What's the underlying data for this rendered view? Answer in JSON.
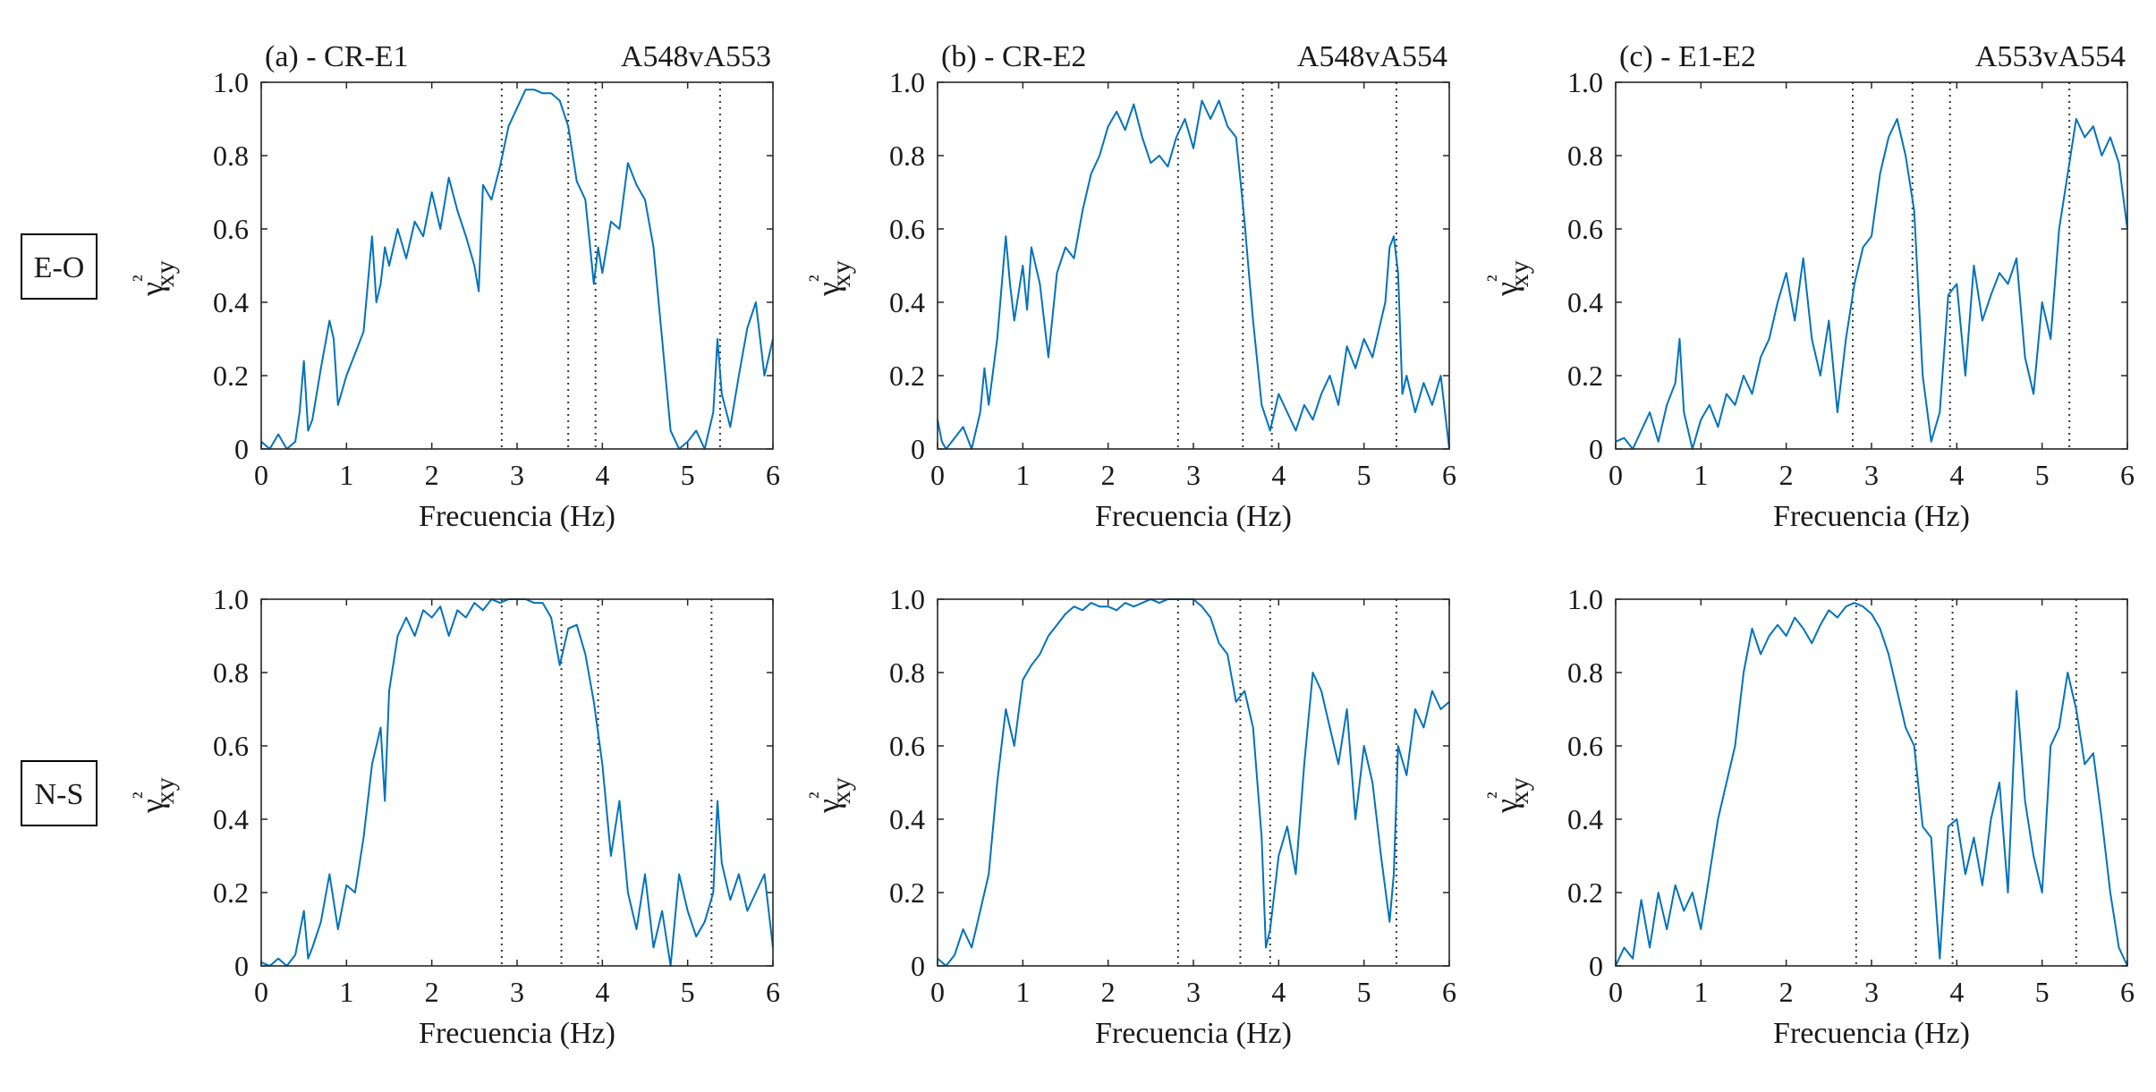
{
  "figure": {
    "row_labels": [
      "E-O",
      "N-S"
    ],
    "line_color": "#0072BD",
    "axis_color": "#262626",
    "marker_color": "#333333"
  },
  "chart_data": [
    {
      "type": "line",
      "row": "E-O",
      "title_left": "(a) - CR-E1",
      "title_right": "A548vA553",
      "xlabel": "Frecuencia (Hz)",
      "ylabel": "γ²xy",
      "xlim": [
        0,
        6
      ],
      "ylim": [
        0,
        1
      ],
      "xticks": [
        0,
        1,
        2,
        3,
        4,
        5,
        6
      ],
      "yticks": [
        0,
        0.2,
        0.4,
        0.6,
        0.8,
        1.0
      ],
      "ytick_labels": [
        "0",
        "0.2",
        "0.4",
        "0.6",
        "0.8",
        "1.0"
      ],
      "vlines": [
        2.82,
        3.6,
        3.92,
        5.38
      ],
      "x": [
        0,
        0.1,
        0.2,
        0.3,
        0.4,
        0.45,
        0.5,
        0.55,
        0.6,
        0.7,
        0.8,
        0.85,
        0.9,
        1.0,
        1.1,
        1.2,
        1.3,
        1.35,
        1.4,
        1.45,
        1.5,
        1.6,
        1.7,
        1.8,
        1.9,
        2.0,
        2.1,
        2.2,
        2.3,
        2.4,
        2.5,
        2.55,
        2.6,
        2.7,
        2.8,
        2.9,
        3.0,
        3.1,
        3.2,
        3.3,
        3.4,
        3.5,
        3.6,
        3.7,
        3.8,
        3.9,
        3.95,
        4.0,
        4.1,
        4.2,
        4.3,
        4.4,
        4.5,
        4.6,
        4.7,
        4.8,
        4.9,
        5.0,
        5.1,
        5.2,
        5.3,
        5.35,
        5.4,
        5.5,
        5.6,
        5.7,
        5.8,
        5.9,
        6.0
      ],
      "y": [
        0.02,
        0.0,
        0.04,
        0.0,
        0.02,
        0.1,
        0.24,
        0.05,
        0.08,
        0.22,
        0.35,
        0.3,
        0.12,
        0.2,
        0.26,
        0.32,
        0.58,
        0.4,
        0.45,
        0.55,
        0.5,
        0.6,
        0.52,
        0.62,
        0.58,
        0.7,
        0.6,
        0.74,
        0.65,
        0.58,
        0.5,
        0.43,
        0.72,
        0.68,
        0.77,
        0.88,
        0.93,
        0.98,
        0.98,
        0.97,
        0.97,
        0.95,
        0.88,
        0.73,
        0.68,
        0.45,
        0.55,
        0.48,
        0.62,
        0.6,
        0.78,
        0.72,
        0.68,
        0.55,
        0.3,
        0.05,
        0.0,
        0.02,
        0.05,
        0.0,
        0.1,
        0.3,
        0.15,
        0.06,
        0.2,
        0.33,
        0.4,
        0.2,
        0.3
      ]
    },
    {
      "type": "line",
      "row": "E-O",
      "title_left": "(b) - CR-E2",
      "title_right": "A548vA554",
      "xlabel": "Frecuencia (Hz)",
      "ylabel": "γ²xy",
      "xlim": [
        0,
        6
      ],
      "ylim": [
        0,
        1
      ],
      "xticks": [
        0,
        1,
        2,
        3,
        4,
        5,
        6
      ],
      "yticks": [
        0,
        0.2,
        0.4,
        0.6,
        0.8,
        1.0
      ],
      "ytick_labels": [
        "0",
        "0.2",
        "0.4",
        "0.6",
        "0.8",
        "1.0"
      ],
      "vlines": [
        2.82,
        3.58,
        3.92,
        5.38
      ],
      "x": [
        0,
        0.05,
        0.1,
        0.2,
        0.3,
        0.4,
        0.5,
        0.55,
        0.6,
        0.7,
        0.8,
        0.85,
        0.9,
        1.0,
        1.05,
        1.1,
        1.2,
        1.3,
        1.4,
        1.5,
        1.6,
        1.7,
        1.8,
        1.9,
        2.0,
        2.1,
        2.2,
        2.3,
        2.4,
        2.5,
        2.6,
        2.7,
        2.8,
        2.9,
        3.0,
        3.1,
        3.2,
        3.3,
        3.4,
        3.5,
        3.6,
        3.65,
        3.7,
        3.8,
        3.9,
        4.0,
        4.1,
        4.2,
        4.3,
        4.4,
        4.5,
        4.6,
        4.7,
        4.8,
        4.9,
        5.0,
        5.1,
        5.2,
        5.25,
        5.3,
        5.35,
        5.4,
        5.45,
        5.5,
        5.6,
        5.7,
        5.8,
        5.9,
        6.0
      ],
      "y": [
        0.08,
        0.02,
        0.0,
        0.03,
        0.06,
        0.0,
        0.1,
        0.22,
        0.12,
        0.3,
        0.58,
        0.45,
        0.35,
        0.5,
        0.38,
        0.55,
        0.45,
        0.25,
        0.48,
        0.55,
        0.52,
        0.65,
        0.75,
        0.8,
        0.88,
        0.92,
        0.87,
        0.94,
        0.85,
        0.78,
        0.8,
        0.77,
        0.85,
        0.9,
        0.82,
        0.95,
        0.9,
        0.95,
        0.88,
        0.85,
        0.62,
        0.48,
        0.35,
        0.12,
        0.05,
        0.15,
        0.1,
        0.05,
        0.12,
        0.08,
        0.15,
        0.2,
        0.12,
        0.28,
        0.22,
        0.3,
        0.25,
        0.35,
        0.4,
        0.55,
        0.58,
        0.48,
        0.15,
        0.2,
        0.1,
        0.18,
        0.12,
        0.2,
        0.0
      ]
    },
    {
      "type": "line",
      "row": "E-O",
      "title_left": "(c) - E1-E2",
      "title_right": "A553vA554",
      "xlabel": "Frecuencia (Hz)",
      "ylabel": "γ²xy",
      "xlim": [
        0,
        6
      ],
      "ylim": [
        0,
        1
      ],
      "xticks": [
        0,
        1,
        2,
        3,
        4,
        5,
        6
      ],
      "yticks": [
        0,
        0.2,
        0.4,
        0.6,
        0.8,
        1.0
      ],
      "ytick_labels": [
        "0",
        "0.2",
        "0.4",
        "0.6",
        "0.8",
        "1.0"
      ],
      "vlines": [
        2.78,
        3.48,
        3.92,
        5.32
      ],
      "x": [
        0,
        0.1,
        0.2,
        0.3,
        0.4,
        0.5,
        0.6,
        0.7,
        0.75,
        0.8,
        0.9,
        1.0,
        1.1,
        1.2,
        1.3,
        1.4,
        1.5,
        1.6,
        1.7,
        1.8,
        1.9,
        2.0,
        2.1,
        2.2,
        2.3,
        2.4,
        2.5,
        2.6,
        2.7,
        2.8,
        2.9,
        3.0,
        3.1,
        3.2,
        3.3,
        3.4,
        3.5,
        3.6,
        3.7,
        3.8,
        3.9,
        4.0,
        4.1,
        4.2,
        4.3,
        4.4,
        4.5,
        4.6,
        4.7,
        4.8,
        4.9,
        5.0,
        5.1,
        5.2,
        5.3,
        5.4,
        5.5,
        5.6,
        5.7,
        5.8,
        5.9,
        6.0
      ],
      "y": [
        0.02,
        0.03,
        0.0,
        0.05,
        0.1,
        0.02,
        0.12,
        0.18,
        0.3,
        0.1,
        0.0,
        0.08,
        0.12,
        0.06,
        0.15,
        0.12,
        0.2,
        0.15,
        0.25,
        0.3,
        0.4,
        0.48,
        0.35,
        0.52,
        0.3,
        0.2,
        0.35,
        0.1,
        0.3,
        0.45,
        0.55,
        0.58,
        0.75,
        0.85,
        0.9,
        0.8,
        0.65,
        0.2,
        0.02,
        0.1,
        0.42,
        0.45,
        0.2,
        0.5,
        0.35,
        0.42,
        0.48,
        0.45,
        0.52,
        0.25,
        0.15,
        0.4,
        0.3,
        0.6,
        0.75,
        0.9,
        0.85,
        0.88,
        0.8,
        0.85,
        0.78,
        0.6
      ]
    },
    {
      "type": "line",
      "row": "N-S",
      "title_left": "",
      "title_right": "",
      "xlabel": "Frecuencia (Hz)",
      "ylabel": "γ²xy",
      "xlim": [
        0,
        6
      ],
      "ylim": [
        0,
        1
      ],
      "xticks": [
        0,
        1,
        2,
        3,
        4,
        5,
        6
      ],
      "yticks": [
        0,
        0.2,
        0.4,
        0.6,
        0.8,
        1.0
      ],
      "ytick_labels": [
        "0",
        "0.2",
        "0.4",
        "0.6",
        "0.8",
        "1.0"
      ],
      "vlines": [
        2.82,
        3.52,
        3.95,
        5.28
      ],
      "x": [
        0,
        0.1,
        0.2,
        0.3,
        0.4,
        0.5,
        0.55,
        0.6,
        0.7,
        0.8,
        0.9,
        1.0,
        1.1,
        1.2,
        1.3,
        1.4,
        1.45,
        1.5,
        1.6,
        1.7,
        1.8,
        1.9,
        2.0,
        2.1,
        2.2,
        2.3,
        2.4,
        2.5,
        2.6,
        2.7,
        2.8,
        2.9,
        3.0,
        3.1,
        3.2,
        3.3,
        3.4,
        3.5,
        3.6,
        3.7,
        3.8,
        3.9,
        4.0,
        4.1,
        4.2,
        4.3,
        4.4,
        4.5,
        4.6,
        4.7,
        4.8,
        4.9,
        5.0,
        5.1,
        5.2,
        5.3,
        5.35,
        5.4,
        5.5,
        5.6,
        5.7,
        5.8,
        5.9,
        6.0
      ],
      "y": [
        0.01,
        0.0,
        0.02,
        0.0,
        0.03,
        0.15,
        0.02,
        0.05,
        0.12,
        0.25,
        0.1,
        0.22,
        0.2,
        0.35,
        0.55,
        0.65,
        0.45,
        0.75,
        0.9,
        0.95,
        0.9,
        0.97,
        0.95,
        0.98,
        0.9,
        0.97,
        0.95,
        0.99,
        0.97,
        1.0,
        0.99,
        1.0,
        1.0,
        1.0,
        0.99,
        0.99,
        0.95,
        0.82,
        0.92,
        0.93,
        0.85,
        0.72,
        0.55,
        0.3,
        0.45,
        0.2,
        0.1,
        0.25,
        0.05,
        0.15,
        0.0,
        0.25,
        0.15,
        0.08,
        0.12,
        0.2,
        0.45,
        0.28,
        0.18,
        0.25,
        0.15,
        0.2,
        0.25,
        0.05
      ]
    },
    {
      "type": "line",
      "row": "N-S",
      "title_left": "",
      "title_right": "",
      "xlabel": "Frecuencia (Hz)",
      "ylabel": "γ²xy",
      "xlim": [
        0,
        6
      ],
      "ylim": [
        0,
        1
      ],
      "xticks": [
        0,
        1,
        2,
        3,
        4,
        5,
        6
      ],
      "yticks": [
        0,
        0.2,
        0.4,
        0.6,
        0.8,
        1.0
      ],
      "ytick_labels": [
        "0",
        "0.2",
        "0.4",
        "0.6",
        "0.8",
        "1.0"
      ],
      "vlines": [
        2.82,
        3.55,
        3.9,
        5.38
      ],
      "x": [
        0,
        0.1,
        0.2,
        0.3,
        0.4,
        0.5,
        0.6,
        0.7,
        0.8,
        0.9,
        1.0,
        1.1,
        1.2,
        1.3,
        1.4,
        1.5,
        1.6,
        1.7,
        1.8,
        1.9,
        2.0,
        2.1,
        2.2,
        2.3,
        2.4,
        2.5,
        2.6,
        2.7,
        2.8,
        2.9,
        3.0,
        3.1,
        3.2,
        3.3,
        3.4,
        3.5,
        3.6,
        3.7,
        3.8,
        3.85,
        3.9,
        4.0,
        4.1,
        4.2,
        4.3,
        4.4,
        4.5,
        4.6,
        4.7,
        4.8,
        4.9,
        5.0,
        5.1,
        5.2,
        5.3,
        5.35,
        5.4,
        5.5,
        5.6,
        5.7,
        5.8,
        5.9,
        6.0
      ],
      "y": [
        0.02,
        0.0,
        0.03,
        0.1,
        0.05,
        0.15,
        0.25,
        0.5,
        0.7,
        0.6,
        0.78,
        0.82,
        0.85,
        0.9,
        0.93,
        0.96,
        0.98,
        0.97,
        0.99,
        0.98,
        0.98,
        0.97,
        0.99,
        0.98,
        0.99,
        1.0,
        0.99,
        1.0,
        1.0,
        1.0,
        1.0,
        0.98,
        0.95,
        0.88,
        0.85,
        0.72,
        0.75,
        0.65,
        0.35,
        0.05,
        0.1,
        0.3,
        0.38,
        0.25,
        0.55,
        0.8,
        0.75,
        0.65,
        0.55,
        0.7,
        0.4,
        0.6,
        0.5,
        0.3,
        0.12,
        0.25,
        0.6,
        0.52,
        0.7,
        0.65,
        0.75,
        0.7,
        0.72
      ]
    },
    {
      "type": "line",
      "row": "N-S",
      "title_left": "",
      "title_right": "",
      "xlabel": "Frecuencia (Hz)",
      "ylabel": "γ²xy",
      "xlim": [
        0,
        6
      ],
      "ylim": [
        0,
        1
      ],
      "xticks": [
        0,
        1,
        2,
        3,
        4,
        5,
        6
      ],
      "yticks": [
        0,
        0.2,
        0.4,
        0.6,
        0.8,
        1.0
      ],
      "ytick_labels": [
        "0",
        "0.2",
        "0.4",
        "0.6",
        "0.8",
        "1.0"
      ],
      "vlines": [
        2.82,
        3.52,
        3.95,
        5.4
      ],
      "x": [
        0,
        0.1,
        0.2,
        0.3,
        0.4,
        0.5,
        0.6,
        0.7,
        0.8,
        0.9,
        1.0,
        1.1,
        1.2,
        1.3,
        1.4,
        1.5,
        1.6,
        1.7,
        1.8,
        1.9,
        2.0,
        2.1,
        2.2,
        2.3,
        2.4,
        2.5,
        2.6,
        2.7,
        2.8,
        2.9,
        3.0,
        3.1,
        3.2,
        3.3,
        3.4,
        3.5,
        3.6,
        3.7,
        3.8,
        3.9,
        4.0,
        4.1,
        4.2,
        4.3,
        4.4,
        4.5,
        4.6,
        4.7,
        4.8,
        4.9,
        5.0,
        5.1,
        5.2,
        5.3,
        5.35,
        5.4,
        5.5,
        5.6,
        5.7,
        5.8,
        5.9,
        6.0
      ],
      "y": [
        0.0,
        0.05,
        0.02,
        0.18,
        0.05,
        0.2,
        0.1,
        0.22,
        0.15,
        0.2,
        0.1,
        0.25,
        0.4,
        0.5,
        0.6,
        0.8,
        0.92,
        0.85,
        0.9,
        0.93,
        0.9,
        0.95,
        0.92,
        0.88,
        0.93,
        0.97,
        0.95,
        0.98,
        0.99,
        0.98,
        0.96,
        0.92,
        0.85,
        0.75,
        0.65,
        0.6,
        0.38,
        0.35,
        0.02,
        0.38,
        0.4,
        0.25,
        0.35,
        0.22,
        0.4,
        0.5,
        0.2,
        0.75,
        0.45,
        0.3,
        0.2,
        0.6,
        0.65,
        0.8,
        0.75,
        0.7,
        0.55,
        0.58,
        0.4,
        0.2,
        0.05,
        0.0
      ]
    }
  ]
}
